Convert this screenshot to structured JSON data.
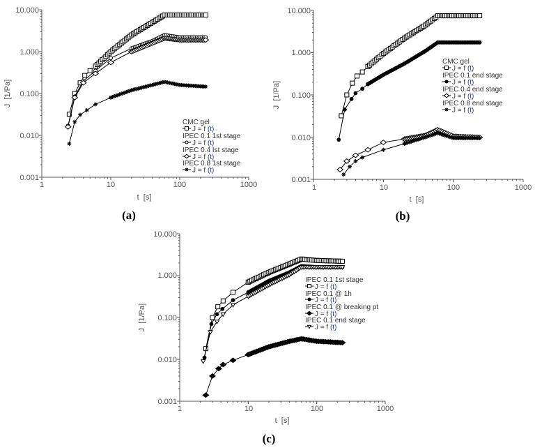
{
  "chart_data": [
    {
      "panel": "(a)",
      "type": "scatter",
      "scale": {
        "x": "log",
        "y": "log"
      },
      "xlabel": "t  [s]",
      "ylabel": "J  [1/Pa]",
      "xlim": [
        1,
        1000
      ],
      "ylim": [
        0.001,
        10
      ],
      "x_ticks": [
        "1",
        "10",
        "100",
        "1000"
      ],
      "y_ticks": [
        "0.001",
        "0.010",
        "0.100",
        "1.000",
        "10.000"
      ],
      "legend_position": "lower right inside",
      "series": [
        {
          "name": "CMC gel",
          "fn": "J = f (t)",
          "marker": "square-open",
          "x": [
            2.5,
            3,
            3.6,
            4.2,
            5,
            6,
            8,
            10,
            20,
            40,
            60,
            100,
            250
          ],
          "y": [
            0.032,
            0.1,
            0.18,
            0.27,
            0.35,
            0.45,
            0.7,
            1.0,
            2.5,
            5.0,
            7.5,
            7.5,
            7.5
          ]
        },
        {
          "name": "IPEC 0.1 1st stage",
          "fn": "J = f (t)",
          "marker": "circle-open",
          "x": [
            2.4,
            3,
            4,
            6,
            10,
            20,
            40,
            60,
            100,
            250
          ],
          "y": [
            0.017,
            0.085,
            0.2,
            0.35,
            0.7,
            1.2,
            1.8,
            2.5,
            2.2,
            2.2
          ]
        },
        {
          "name": "IPEC 0.4 Ist stage",
          "fn": "J = f (t)",
          "marker": "diamond-open",
          "x": [
            2.4,
            3,
            4,
            6,
            10,
            20,
            40,
            60,
            100,
            250
          ],
          "y": [
            0.016,
            0.08,
            0.18,
            0.3,
            0.55,
            1.0,
            1.6,
            2.1,
            1.9,
            1.9
          ]
        },
        {
          "name": "IPEC 0.8 1st stage",
          "fn": "J = f (t)",
          "marker": "star",
          "x": [
            2.5,
            3,
            3.6,
            4.5,
            6,
            10,
            20,
            40,
            60,
            100,
            250
          ],
          "y": [
            0.0063,
            0.021,
            0.031,
            0.04,
            0.055,
            0.08,
            0.12,
            0.16,
            0.19,
            0.16,
            0.145
          ]
        }
      ]
    },
    {
      "panel": "(b)",
      "type": "scatter",
      "scale": {
        "x": "log",
        "y": "log"
      },
      "xlabel": "t  [s]",
      "ylabel": "J  [1/Pa]",
      "xlim": [
        1,
        1000
      ],
      "ylim": [
        0.001,
        10
      ],
      "x_ticks": [
        "1",
        "10",
        "100",
        "1000"
      ],
      "y_ticks": [
        "0.001",
        "0.010",
        "0.100",
        "1.000",
        "10.000"
      ],
      "legend_position": "upper right inside",
      "series": [
        {
          "name": "CMC gel",
          "fn": "J = f (t)",
          "marker": "square-open",
          "x": [
            2.5,
            3,
            3.6,
            4.2,
            5,
            6,
            8,
            10,
            20,
            40,
            60,
            100,
            250
          ],
          "y": [
            0.032,
            0.1,
            0.19,
            0.28,
            0.35,
            0.47,
            0.7,
            0.95,
            2.2,
            4.5,
            7.5,
            7.5,
            7.5
          ]
        },
        {
          "name": "IPEC 0.1 end stage",
          "fn": "J = f (t)",
          "marker": "circle-filled",
          "x": [
            2.3,
            2.8,
            3.5,
            4,
            5,
            6,
            10,
            20,
            40,
            60,
            100,
            250
          ],
          "y": [
            0.0087,
            0.045,
            0.08,
            0.11,
            0.14,
            0.18,
            0.3,
            0.55,
            1.1,
            1.75,
            1.75,
            1.75
          ]
        },
        {
          "name": "IPEC 0.4 end stage",
          "fn": "J = f (t)",
          "marker": "diamond-open",
          "x": [
            2.4,
            3,
            4,
            6,
            10,
            20,
            40,
            60,
            100,
            250
          ],
          "y": [
            0.0017,
            0.0027,
            0.0037,
            0.005,
            0.0075,
            0.009,
            0.011,
            0.015,
            0.0105,
            0.0098
          ]
        },
        {
          "name": "IPEC 0.8 end stage",
          "fn": "J = f (t)",
          "marker": "star",
          "x": [
            2.7,
            3.3,
            4,
            5,
            10,
            20,
            40,
            60,
            100,
            250
          ],
          "y": [
            0.0013,
            0.002,
            0.0027,
            0.0033,
            0.005,
            0.007,
            0.01,
            0.0125,
            0.0095,
            0.0095
          ]
        }
      ]
    },
    {
      "panel": "(c)",
      "type": "scatter",
      "scale": {
        "x": "log",
        "y": "log"
      },
      "xlabel": "t  [s]",
      "ylabel": "J  [1/Pa]",
      "xlim": [
        1,
        1000
      ],
      "ylim": [
        0.001,
        10
      ],
      "x_ticks": [
        "1",
        "10",
        "100",
        "1000"
      ],
      "y_ticks": [
        "0.001",
        "0.010",
        "0.100",
        "1.000",
        "10.000"
      ],
      "legend_position": "upper right inside",
      "series": [
        {
          "name": "IPEC 0.1 1st stage",
          "fn": "J = f (t)",
          "marker": "square-open",
          "x": [
            2.4,
            3,
            3.6,
            4.3,
            6,
            10,
            20,
            40,
            60,
            100,
            250
          ],
          "y": [
            0.018,
            0.1,
            0.18,
            0.25,
            0.4,
            0.7,
            1.2,
            1.9,
            2.5,
            2.3,
            2.2
          ]
        },
        {
          "name": "IPEC 0.1 @ 1h",
          "fn": "J = f (t)",
          "marker": "circle-filled",
          "x": [
            2.3,
            2.9,
            3.5,
            4.2,
            6,
            10,
            20,
            40,
            60,
            100,
            250
          ],
          "y": [
            0.011,
            0.07,
            0.12,
            0.16,
            0.26,
            0.4,
            0.75,
            1.2,
            1.7,
            1.6,
            1.6
          ]
        },
        {
          "name": "IPEC 0.1 @ breaking pt",
          "fn": "J = f (t)",
          "marker": "diamond-filled",
          "x": [
            2.4,
            3,
            3.7,
            4.3,
            6,
            10,
            20,
            40,
            60,
            100,
            250
          ],
          "y": [
            0.0014,
            0.004,
            0.006,
            0.0075,
            0.0095,
            0.013,
            0.02,
            0.027,
            0.031,
            0.027,
            0.025
          ]
        },
        {
          "name": "IPEC 0.1 end stage",
          "fn": "J = f (t)",
          "marker": "triangle-down-open",
          "x": [
            2.2,
            2.8,
            3.5,
            4.3,
            6,
            10,
            20,
            40,
            60,
            100,
            250
          ],
          "y": [
            0.009,
            0.045,
            0.08,
            0.12,
            0.2,
            0.32,
            0.6,
            1.05,
            1.6,
            1.6,
            1.6
          ]
        }
      ]
    }
  ],
  "panels": {
    "a": {
      "label": "(a)",
      "xlabel": "t  [s]",
      "ylabel": "J  [1/Pa]",
      "x_ticks": [
        "1",
        "10",
        "100",
        "1000"
      ],
      "y_ticks": [
        "0.001",
        "0.010",
        "0.100",
        "1.000",
        "10.000"
      ],
      "legend": [
        {
          "name": "CMC gel",
          "fn_prefix": "J = f ",
          "fn_arg": "(t)"
        },
        {
          "name": "IPEC 0.1 1st stage",
          "fn_prefix": "J = f ",
          "fn_arg": "(t)"
        },
        {
          "name": "IPEC 0.4 Ist stage",
          "fn_prefix": "J = f ",
          "fn_arg": "(t)"
        },
        {
          "name": "IPEC 0.8 1st stage",
          "fn_prefix": "J = f ",
          "fn_arg": "(t)"
        }
      ]
    },
    "b": {
      "label": "(b)",
      "xlabel": "t  [s]",
      "ylabel": "J  [1/Pa]",
      "x_ticks": [
        "1",
        "10",
        "100",
        "1000"
      ],
      "y_ticks": [
        "0.001",
        "0.010",
        "0.100",
        "1.000",
        "10.000"
      ],
      "legend": [
        {
          "name": "CMC gel",
          "fn_prefix": "J = f ",
          "fn_arg": "(t)"
        },
        {
          "name": "IPEC 0.1 end stage",
          "fn_prefix": "J = f ",
          "fn_arg": "(t)"
        },
        {
          "name": "IPEC 0.4 end stage",
          "fn_prefix": "J = f ",
          "fn_arg": "(t)"
        },
        {
          "name": "IPEC 0.8 end stage",
          "fn_prefix": "J = f ",
          "fn_arg": "(t)"
        }
      ]
    },
    "c": {
      "label": "(c)",
      "xlabel": "t  [s]",
      "ylabel": "J  [1/Pa]",
      "x_ticks": [
        "1",
        "10",
        "100",
        "1000"
      ],
      "y_ticks": [
        "0.001",
        "0.010",
        "0.100",
        "1.000",
        "10.000"
      ],
      "legend": [
        {
          "name": "IPEC 0.1 1st stage",
          "fn_prefix": "J = f ",
          "fn_arg": "(t)"
        },
        {
          "name": "IPEC 0.1 @ 1h",
          "fn_prefix": "J = f ",
          "fn_arg": "(t)"
        },
        {
          "name": "IPEC 0.1 @ breaking pt",
          "fn_prefix": "J = f ",
          "fn_arg": "(t)"
        },
        {
          "name": "IPEC 0.1 end stage",
          "fn_prefix": "J = f ",
          "fn_arg": "(t)"
        }
      ]
    }
  },
  "colors": {
    "axis": "#555555",
    "series": "#000000",
    "fn_arg": "#2a3aa8"
  }
}
